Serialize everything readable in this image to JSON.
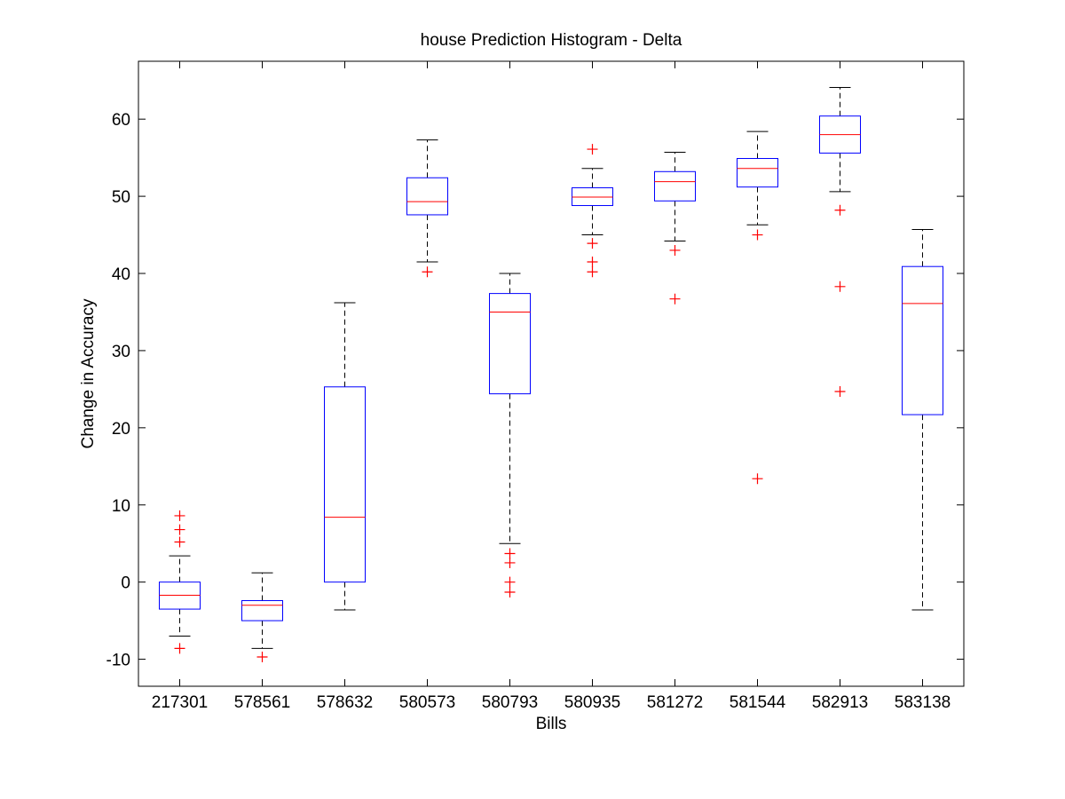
{
  "chart_data": {
    "type": "boxplot",
    "title": "house Prediction Histogram - Delta",
    "xlabel": "Bills",
    "ylabel": "Change in Accuracy",
    "ylim": [
      -13.5,
      67.5
    ],
    "yticks": [
      -10,
      0,
      10,
      20,
      30,
      40,
      50,
      60
    ],
    "ytick_labels": [
      "-10",
      "0",
      "10",
      "20",
      "30",
      "40",
      "50",
      "60"
    ],
    "grid": false,
    "colors": {
      "box": "#0000ff",
      "median": "#ff0000",
      "whisker": "#000000",
      "outlier": "#ff0000",
      "axes": "#000000"
    },
    "categories": [
      "217301",
      "578561",
      "578632",
      "580573",
      "580793",
      "580935",
      "581272",
      "581544",
      "582913",
      "583138"
    ],
    "boxes": [
      {
        "whisker_low": -7.0,
        "q1": -3.5,
        "median": -1.7,
        "q3": 0.0,
        "whisker_high": 3.4,
        "outliers": [
          -8.6,
          5.2,
          6.8,
          8.6
        ]
      },
      {
        "whisker_low": -8.6,
        "q1": -5.0,
        "median": -3.0,
        "q3": -2.4,
        "whisker_high": 1.2,
        "outliers": [
          -9.7
        ]
      },
      {
        "whisker_low": -3.6,
        "q1": 0.0,
        "median": 8.4,
        "q3": 25.3,
        "whisker_high": 36.2,
        "outliers": []
      },
      {
        "whisker_low": 41.5,
        "q1": 47.6,
        "median": 49.3,
        "q3": 52.4,
        "whisker_high": 57.3,
        "outliers": [
          40.2
        ]
      },
      {
        "whisker_low": 5.0,
        "q1": 24.4,
        "median": 35.0,
        "q3": 37.4,
        "whisker_high": 40.0,
        "outliers": [
          -1.3,
          0.0,
          2.5,
          3.7
        ]
      },
      {
        "whisker_low": 45.0,
        "q1": 48.8,
        "median": 49.9,
        "q3": 51.1,
        "whisker_high": 53.6,
        "outliers": [
          40.2,
          41.5,
          43.9,
          56.1
        ]
      },
      {
        "whisker_low": 44.2,
        "q1": 49.4,
        "median": 51.9,
        "q3": 53.2,
        "whisker_high": 55.7,
        "outliers": [
          36.7,
          43.0
        ]
      },
      {
        "whisker_low": 46.3,
        "q1": 51.2,
        "median": 53.6,
        "q3": 54.9,
        "whisker_high": 58.4,
        "outliers": [
          13.4,
          45.0
        ]
      },
      {
        "whisker_low": 50.6,
        "q1": 55.6,
        "median": 58.0,
        "q3": 60.4,
        "whisker_high": 64.1,
        "outliers": [
          24.7,
          38.3,
          48.2
        ]
      },
      {
        "whisker_low": -3.6,
        "q1": 21.7,
        "median": 36.1,
        "q3": 40.9,
        "whisker_high": 45.7,
        "outliers": []
      }
    ]
  }
}
